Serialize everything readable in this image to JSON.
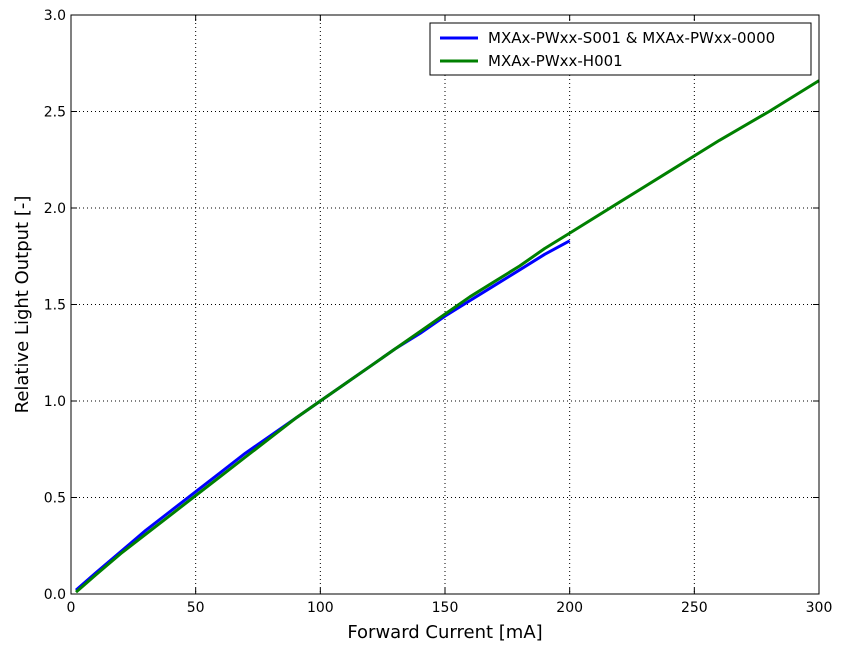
{
  "chart_data": {
    "type": "line",
    "title": "",
    "xlabel": "Forward Current [mA]",
    "ylabel": "Relative Light Output [-]",
    "xlim": [
      0,
      300
    ],
    "ylim": [
      0,
      3.0
    ],
    "x_ticks": [
      "0",
      "50",
      "100",
      "150",
      "200",
      "250",
      "300"
    ],
    "y_ticks": [
      "0.0",
      "0.5",
      "1.0",
      "1.5",
      "2.0",
      "2.5",
      "3.0"
    ],
    "grid": true,
    "legend_position": "top-right",
    "series": [
      {
        "name": "MXAx-PWxx-S001 & MXAx-PWxx-0000",
        "color": "#0000ff",
        "points": [
          [
            2,
            0.02
          ],
          [
            10,
            0.11
          ],
          [
            20,
            0.22
          ],
          [
            30,
            0.33
          ],
          [
            40,
            0.43
          ],
          [
            50,
            0.53
          ],
          [
            60,
            0.63
          ],
          [
            70,
            0.73
          ],
          [
            80,
            0.82
          ],
          [
            90,
            0.91
          ],
          [
            100,
            1.0
          ],
          [
            110,
            1.09
          ],
          [
            120,
            1.18
          ],
          [
            130,
            1.27
          ],
          [
            140,
            1.35
          ],
          [
            150,
            1.44
          ],
          [
            160,
            1.52
          ],
          [
            170,
            1.6
          ],
          [
            180,
            1.68
          ],
          [
            190,
            1.76
          ],
          [
            200,
            1.83
          ]
        ]
      },
      {
        "name": "MXAx-PWxx-H001",
        "color": "#008000",
        "points": [
          [
            2,
            0.01
          ],
          [
            10,
            0.1
          ],
          [
            20,
            0.21
          ],
          [
            30,
            0.31
          ],
          [
            40,
            0.41
          ],
          [
            50,
            0.51
          ],
          [
            60,
            0.61
          ],
          [
            70,
            0.71
          ],
          [
            80,
            0.81
          ],
          [
            90,
            0.91
          ],
          [
            100,
            1.0
          ],
          [
            110,
            1.09
          ],
          [
            120,
            1.18
          ],
          [
            130,
            1.27
          ],
          [
            140,
            1.36
          ],
          [
            150,
            1.45
          ],
          [
            160,
            1.54
          ],
          [
            170,
            1.62
          ],
          [
            180,
            1.7
          ],
          [
            190,
            1.79
          ],
          [
            200,
            1.87
          ],
          [
            220,
            2.03
          ],
          [
            240,
            2.19
          ],
          [
            260,
            2.35
          ],
          [
            280,
            2.5
          ],
          [
            300,
            2.66
          ]
        ]
      }
    ]
  }
}
